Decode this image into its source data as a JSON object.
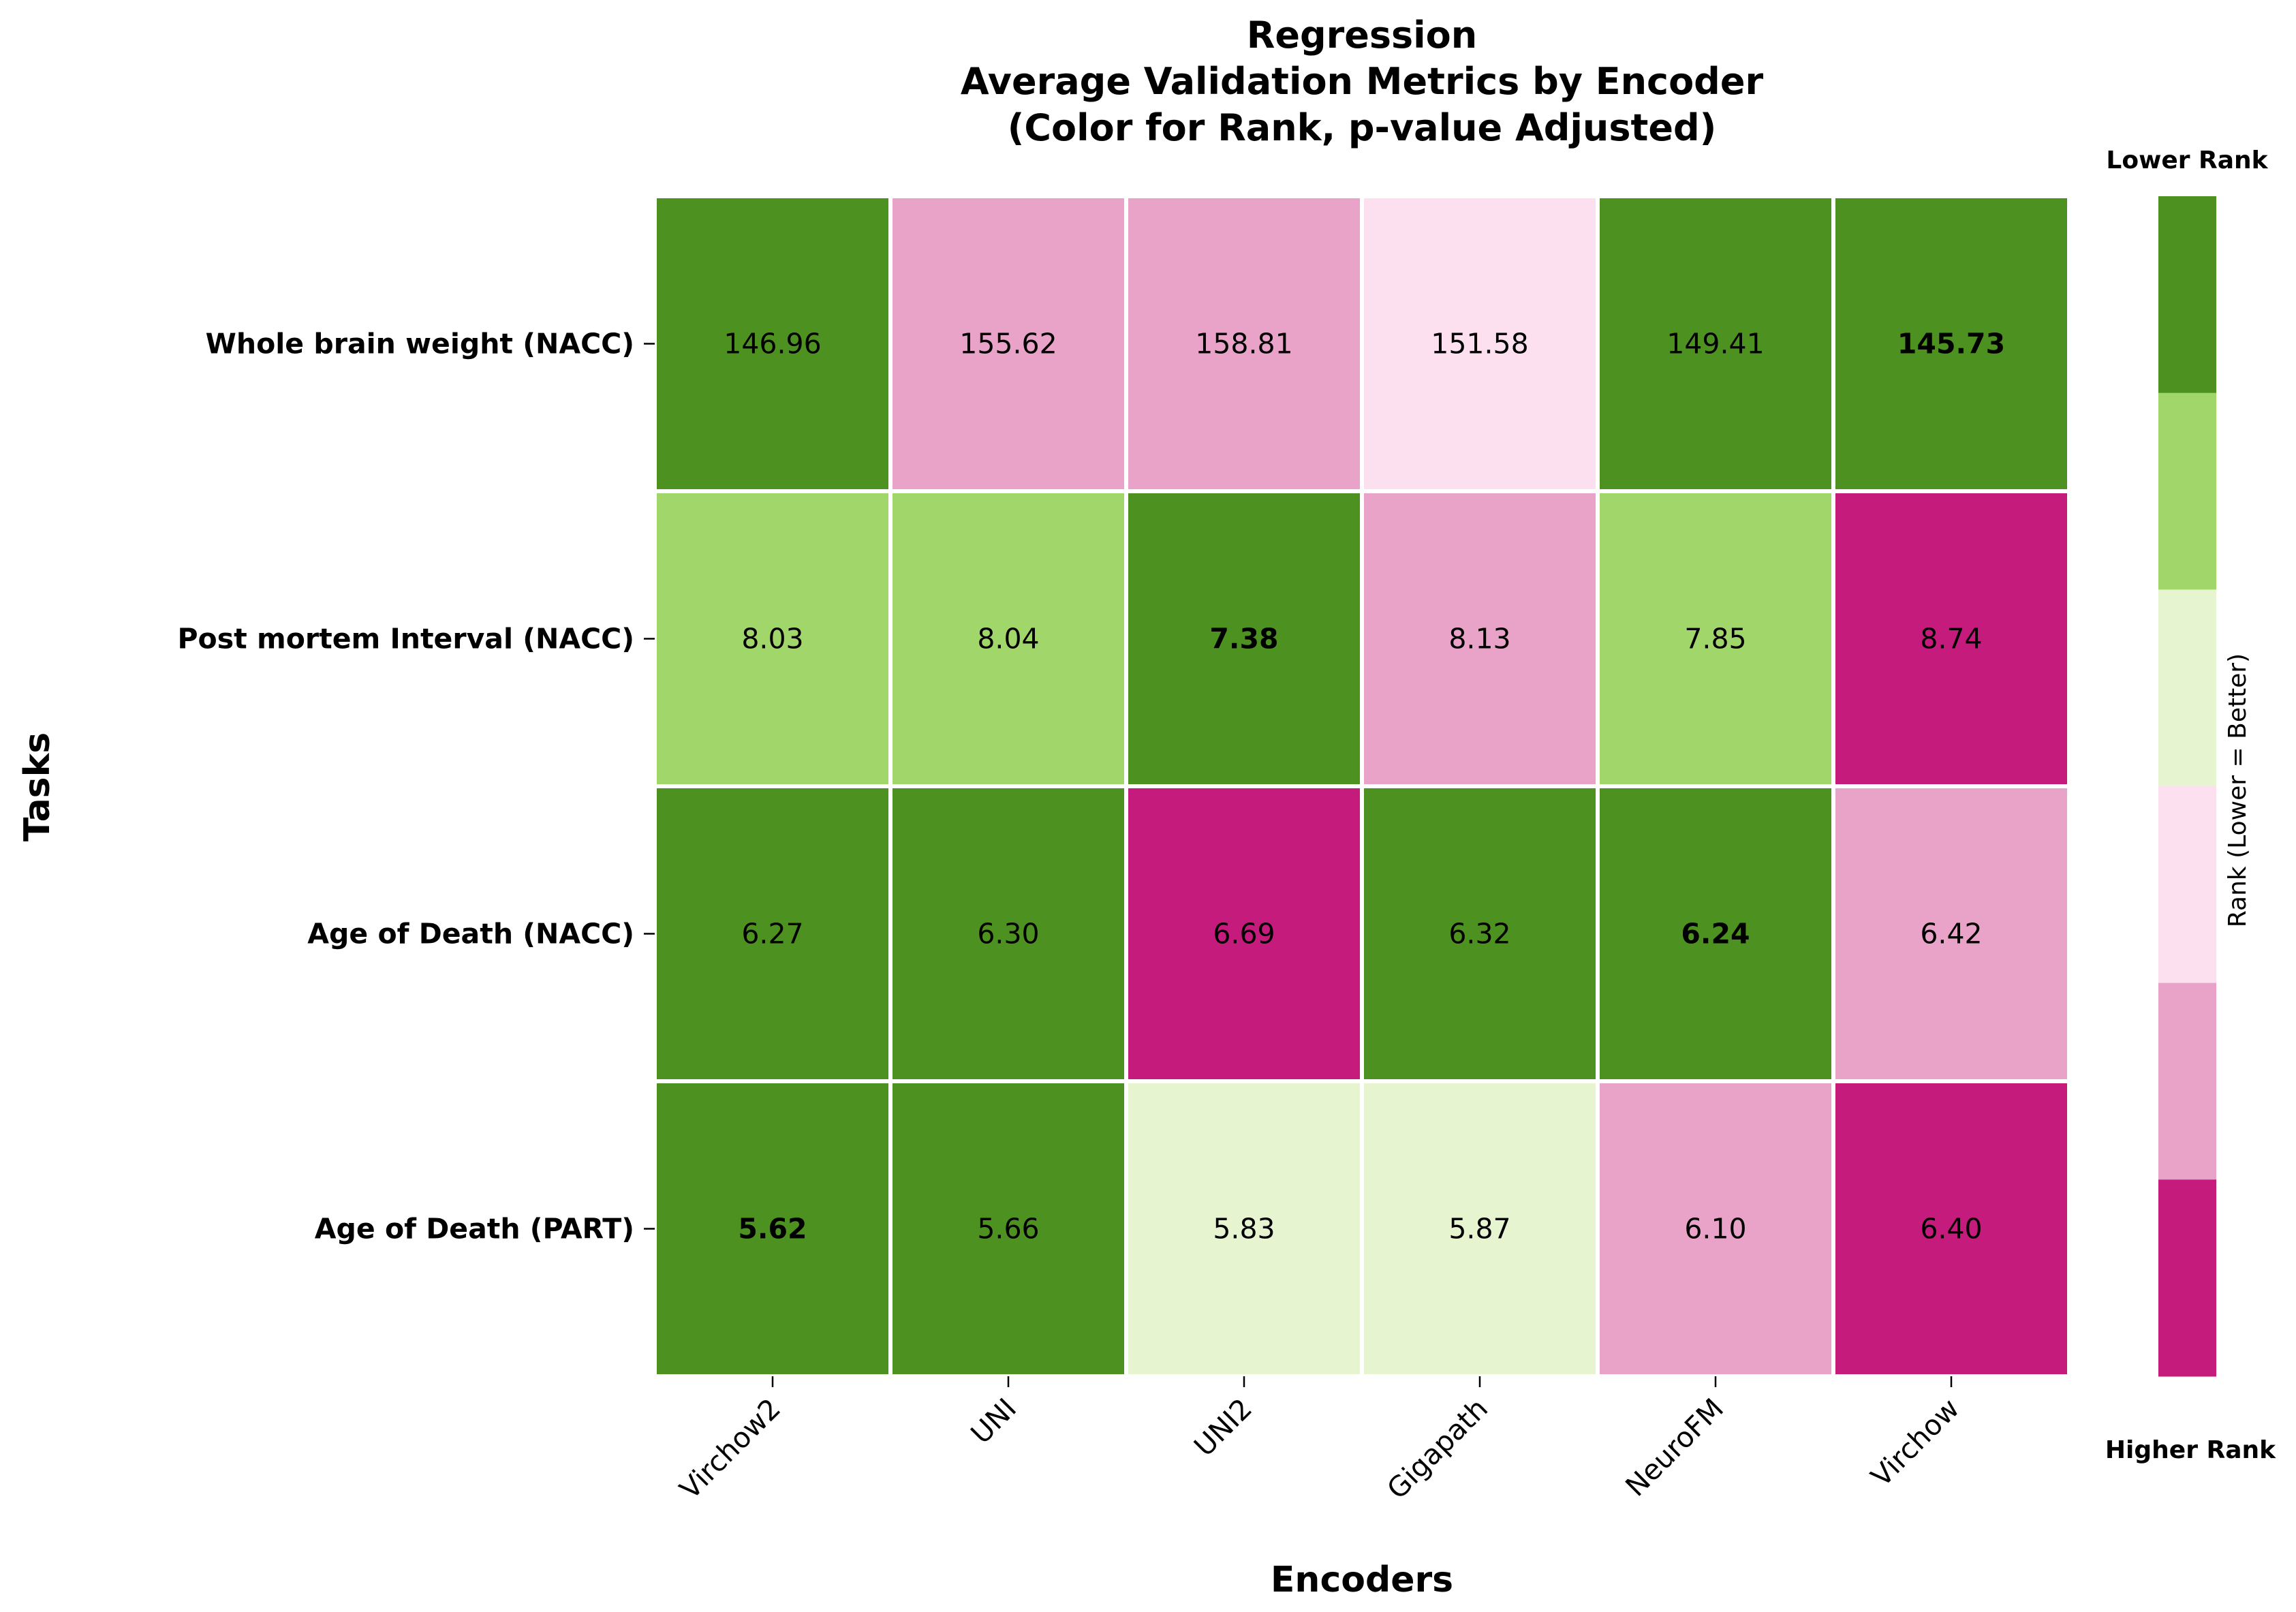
{
  "chart_data": {
    "type": "heatmap",
    "title": [
      "Regression",
      "Average Validation Metrics by Encoder",
      "(Color for Rank, p-value Adjusted)"
    ],
    "xlabel": "Encoders",
    "ylabel": "Tasks",
    "columns": [
      "Virchow2",
      "UNI",
      "UNI2",
      "Gigapath",
      "NeuroFM",
      "Virchow"
    ],
    "rows": [
      "Whole brain weight (NACC)",
      "Post mortem Interval (NACC)",
      "Age of Death (NACC)",
      "Age of Death (PART)"
    ],
    "values": [
      [
        "146.96",
        "155.62",
        "158.81",
        "151.58",
        "149.41",
        "145.73"
      ],
      [
        "8.03",
        "8.04",
        "7.38",
        "8.13",
        "7.85",
        "8.74"
      ],
      [
        "6.27",
        "6.30",
        "6.69",
        "6.32",
        "6.24",
        "6.42"
      ],
      [
        "5.62",
        "5.66",
        "5.83",
        "5.87",
        "6.10",
        "6.40"
      ]
    ],
    "rank_levels": [
      [
        1,
        5,
        5,
        4,
        1,
        1
      ],
      [
        2,
        2,
        1,
        5,
        2,
        6
      ],
      [
        1,
        1,
        6,
        1,
        1,
        5
      ],
      [
        1,
        1,
        3,
        3,
        5,
        6
      ]
    ],
    "bold": [
      [
        false,
        false,
        false,
        false,
        false,
        true
      ],
      [
        false,
        false,
        true,
        false,
        false,
        false
      ],
      [
        false,
        false,
        false,
        false,
        true,
        false
      ],
      [
        true,
        false,
        false,
        false,
        false,
        false
      ]
    ],
    "colormap": [
      "#4d9221",
      "#a1d76a",
      "#e6f5d0",
      "#fde0ef",
      "#e9a3c9",
      "#c51b7d"
    ],
    "colorbar": {
      "label": "Rank (Lower = Better)",
      "top_label": "Lower Rank",
      "bottom_label": "Higher Rank"
    },
    "grid": false
  }
}
